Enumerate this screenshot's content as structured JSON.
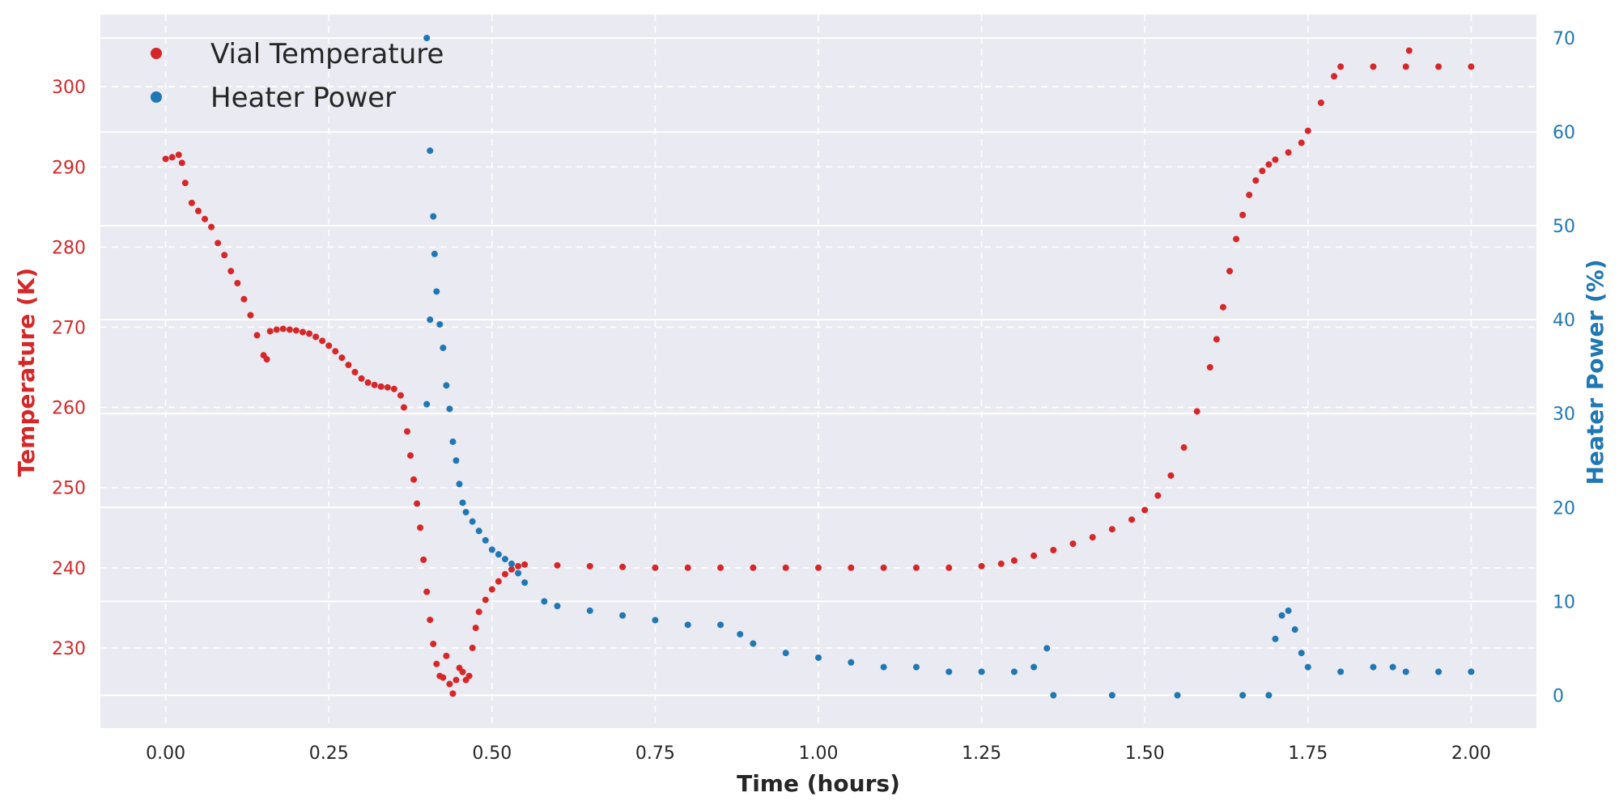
{
  "colors": {
    "temperature": "#d62728",
    "power": "#1f77b4",
    "plot_background": "#eaeaf2",
    "grid": "#ffffff",
    "text": "#262626"
  },
  "legend": {
    "items": [
      {
        "label": "Vial Temperature",
        "color": "#d62728"
      },
      {
        "label": "Heater Power",
        "color": "#1f77b4"
      }
    ],
    "placement": "top-left"
  },
  "chart_data": {
    "type": "scatter",
    "title": "",
    "xlabel": "Time (hours)",
    "ylabel_left": "Temperature (K)",
    "ylabel_right": "Heater Power (%)",
    "xlim": [
      -0.1,
      2.1
    ],
    "ylim_left": [
      220,
      309
    ],
    "ylim_right": [
      -3.5,
      72.5
    ],
    "x_ticks": [
      0.0,
      0.25,
      0.5,
      0.75,
      1.0,
      1.25,
      1.5,
      1.75,
      2.0
    ],
    "x_tick_labels": [
      "0.00",
      "0.25",
      "0.50",
      "0.75",
      "1.00",
      "1.25",
      "1.50",
      "1.75",
      "2.00"
    ],
    "y_left_ticks": [
      230,
      240,
      250,
      260,
      270,
      280,
      290,
      300
    ],
    "y_left_tick_labels": [
      "230",
      "240",
      "250",
      "260",
      "270",
      "280",
      "290",
      "300"
    ],
    "y_right_ticks": [
      0,
      10,
      20,
      30,
      40,
      50,
      60,
      70
    ],
    "y_right_tick_labels": [
      "0",
      "10",
      "20",
      "30",
      "40",
      "50",
      "60",
      "70"
    ],
    "grid": true,
    "series": [
      {
        "name": "Vial Temperature",
        "axis": "left",
        "color": "#d62728",
        "points": [
          [
            0.0,
            291.0
          ],
          [
            0.01,
            291.2
          ],
          [
            0.02,
            291.5
          ],
          [
            0.025,
            290.5
          ],
          [
            0.03,
            288.0
          ],
          [
            0.04,
            285.5
          ],
          [
            0.05,
            284.5
          ],
          [
            0.06,
            283.5
          ],
          [
            0.07,
            282.5
          ],
          [
            0.08,
            280.5
          ],
          [
            0.09,
            279.0
          ],
          [
            0.1,
            277.0
          ],
          [
            0.11,
            275.5
          ],
          [
            0.12,
            273.5
          ],
          [
            0.13,
            271.5
          ],
          [
            0.14,
            269.0
          ],
          [
            0.15,
            266.5
          ],
          [
            0.155,
            266.0
          ],
          [
            0.16,
            269.5
          ],
          [
            0.17,
            269.7
          ],
          [
            0.18,
            269.8
          ],
          [
            0.19,
            269.7
          ],
          [
            0.2,
            269.6
          ],
          [
            0.21,
            269.4
          ],
          [
            0.22,
            269.2
          ],
          [
            0.23,
            268.8
          ],
          [
            0.24,
            268.3
          ],
          [
            0.25,
            267.7
          ],
          [
            0.26,
            267.0
          ],
          [
            0.27,
            266.2
          ],
          [
            0.28,
            265.3
          ],
          [
            0.29,
            264.4
          ],
          [
            0.3,
            263.6
          ],
          [
            0.31,
            263.1
          ],
          [
            0.32,
            262.8
          ],
          [
            0.33,
            262.6
          ],
          [
            0.34,
            262.5
          ],
          [
            0.35,
            262.3
          ],
          [
            0.36,
            261.5
          ],
          [
            0.365,
            260.0
          ],
          [
            0.37,
            257.0
          ],
          [
            0.375,
            254.0
          ],
          [
            0.38,
            251.0
          ],
          [
            0.385,
            248.0
          ],
          [
            0.39,
            245.0
          ],
          [
            0.395,
            241.0
          ],
          [
            0.4,
            237.0
          ],
          [
            0.405,
            233.5
          ],
          [
            0.41,
            230.5
          ],
          [
            0.415,
            228.0
          ],
          [
            0.42,
            226.5
          ],
          [
            0.425,
            226.3
          ],
          [
            0.43,
            229.0
          ],
          [
            0.435,
            225.5
          ],
          [
            0.44,
            224.3
          ],
          [
            0.445,
            226.0
          ],
          [
            0.45,
            227.5
          ],
          [
            0.455,
            227.0
          ],
          [
            0.46,
            226.0
          ],
          [
            0.465,
            226.5
          ],
          [
            0.47,
            230.0
          ],
          [
            0.475,
            232.5
          ],
          [
            0.48,
            234.5
          ],
          [
            0.49,
            236.0
          ],
          [
            0.5,
            237.3
          ],
          [
            0.51,
            238.3
          ],
          [
            0.52,
            239.2
          ],
          [
            0.53,
            239.8
          ],
          [
            0.54,
            240.2
          ],
          [
            0.55,
            240.4
          ],
          [
            0.6,
            240.3
          ],
          [
            0.65,
            240.2
          ],
          [
            0.7,
            240.1
          ],
          [
            0.75,
            240.0
          ],
          [
            0.8,
            240.0
          ],
          [
            0.85,
            240.0
          ],
          [
            0.9,
            240.0
          ],
          [
            0.95,
            240.0
          ],
          [
            1.0,
            240.0
          ],
          [
            1.05,
            240.0
          ],
          [
            1.1,
            240.0
          ],
          [
            1.15,
            240.0
          ],
          [
            1.2,
            240.0
          ],
          [
            1.25,
            240.2
          ],
          [
            1.28,
            240.5
          ],
          [
            1.3,
            240.9
          ],
          [
            1.33,
            241.5
          ],
          [
            1.36,
            242.2
          ],
          [
            1.39,
            243.0
          ],
          [
            1.42,
            243.8
          ],
          [
            1.45,
            244.8
          ],
          [
            1.48,
            246.0
          ],
          [
            1.5,
            247.2
          ],
          [
            1.52,
            249.0
          ],
          [
            1.54,
            251.5
          ],
          [
            1.56,
            255.0
          ],
          [
            1.58,
            259.5
          ],
          [
            1.6,
            265.0
          ],
          [
            1.61,
            268.5
          ],
          [
            1.62,
            272.5
          ],
          [
            1.63,
            277.0
          ],
          [
            1.64,
            281.0
          ],
          [
            1.65,
            284.0
          ],
          [
            1.66,
            286.5
          ],
          [
            1.67,
            288.3
          ],
          [
            1.68,
            289.5
          ],
          [
            1.69,
            290.3
          ],
          [
            1.7,
            290.9
          ],
          [
            1.72,
            291.8
          ],
          [
            1.74,
            293.0
          ],
          [
            1.75,
            294.5
          ],
          [
            1.77,
            298.0
          ],
          [
            1.79,
            301.3
          ],
          [
            1.8,
            302.5
          ],
          [
            1.85,
            302.5
          ],
          [
            1.9,
            302.5
          ],
          [
            1.905,
            304.5
          ],
          [
            1.95,
            302.5
          ],
          [
            2.0,
            302.5
          ]
        ]
      },
      {
        "name": "Heater Power",
        "axis": "right",
        "color": "#1f77b4",
        "points": [
          [
            0.4,
            70.0
          ],
          [
            0.405,
            58.0
          ],
          [
            0.41,
            51.0
          ],
          [
            0.405,
            40.0
          ],
          [
            0.4,
            31.0
          ],
          [
            0.412,
            47.0
          ],
          [
            0.415,
            43.0
          ],
          [
            0.42,
            39.5
          ],
          [
            0.425,
            37.0
          ],
          [
            0.43,
            33.0
          ],
          [
            0.435,
            30.5
          ],
          [
            0.44,
            27.0
          ],
          [
            0.445,
            25.0
          ],
          [
            0.45,
            22.5
          ],
          [
            0.455,
            20.5
          ],
          [
            0.46,
            19.5
          ],
          [
            0.47,
            18.5
          ],
          [
            0.48,
            17.5
          ],
          [
            0.49,
            16.5
          ],
          [
            0.5,
            15.5
          ],
          [
            0.51,
            15.0
          ],
          [
            0.52,
            14.5
          ],
          [
            0.53,
            14.0
          ],
          [
            0.54,
            13.0
          ],
          [
            0.55,
            12.0
          ],
          [
            0.58,
            10.0
          ],
          [
            0.6,
            9.5
          ],
          [
            0.65,
            9.0
          ],
          [
            0.7,
            8.5
          ],
          [
            0.75,
            8.0
          ],
          [
            0.8,
            7.5
          ],
          [
            0.85,
            7.5
          ],
          [
            0.88,
            6.5
          ],
          [
            0.9,
            5.5
          ],
          [
            0.95,
            4.5
          ],
          [
            1.0,
            4.0
          ],
          [
            1.05,
            3.5
          ],
          [
            1.1,
            3.0
          ],
          [
            1.15,
            3.0
          ],
          [
            1.2,
            2.5
          ],
          [
            1.25,
            2.5
          ],
          [
            1.3,
            2.5
          ],
          [
            1.33,
            3.0
          ],
          [
            1.35,
            5.0
          ],
          [
            1.36,
            0.0
          ],
          [
            1.45,
            0.0
          ],
          [
            1.55,
            0.0
          ],
          [
            1.65,
            0.0
          ],
          [
            1.69,
            0.0
          ],
          [
            1.7,
            6.0
          ],
          [
            1.71,
            8.5
          ],
          [
            1.72,
            9.0
          ],
          [
            1.73,
            7.0
          ],
          [
            1.74,
            4.5
          ],
          [
            1.75,
            3.0
          ],
          [
            1.8,
            2.5
          ],
          [
            1.85,
            3.0
          ],
          [
            1.88,
            3.0
          ],
          [
            1.9,
            2.5
          ],
          [
            1.95,
            2.5
          ],
          [
            2.0,
            2.5
          ]
        ]
      }
    ]
  }
}
